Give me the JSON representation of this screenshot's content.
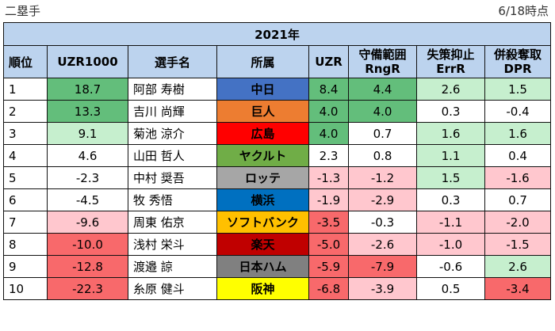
{
  "header": {
    "left": "二塁手",
    "right": "6/18時点"
  },
  "table": {
    "title": "2021年",
    "columns": [
      {
        "line1": "順位",
        "line2": ""
      },
      {
        "line1": "UZR1000",
        "line2": ""
      },
      {
        "line1": "選手名",
        "line2": ""
      },
      {
        "line1": "所属",
        "line2": ""
      },
      {
        "line1": "UZR",
        "line2": ""
      },
      {
        "line1": "守備範囲",
        "line2": "RngR"
      },
      {
        "line1": "失策抑止",
        "line2": "ErrR"
      },
      {
        "line1": "併殺奪取",
        "line2": "DPR"
      }
    ],
    "rows": [
      {
        "rank": "1",
        "uzr1000": "18.7",
        "player": "阿部 寿樹",
        "team": "中日",
        "uzr": "8.4",
        "rngr": "4.4",
        "errr": "2.6",
        "dpr": "1.5",
        "colors": {
          "uzr1000": "#63be7b",
          "team": "#4472c4",
          "uzr": "#63be7b",
          "rngr": "#63be7b",
          "errr": "#c6efce",
          "dpr": "#c6efce"
        },
        "team_text": "#000000"
      },
      {
        "rank": "2",
        "uzr1000": "13.3",
        "player": "吉川 尚輝",
        "team": "巨人",
        "uzr": "4.0",
        "rngr": "4.0",
        "errr": "0.3",
        "dpr": "-0.4",
        "colors": {
          "uzr1000": "#63be7b",
          "team": "#ed7d31",
          "uzr": "#63be7b",
          "rngr": "#63be7b",
          "errr": "#ffffff",
          "dpr": "#ffffff"
        },
        "team_text": "#000000"
      },
      {
        "rank": "3",
        "uzr1000": "9.1",
        "player": "菊池 涼介",
        "team": "広島",
        "uzr": "4.0",
        "rngr": "0.7",
        "errr": "1.6",
        "dpr": "1.6",
        "colors": {
          "uzr1000": "#c6efce",
          "team": "#ff0000",
          "uzr": "#63be7b",
          "rngr": "#ffffff",
          "errr": "#c6efce",
          "dpr": "#c6efce"
        },
        "team_text": "#000000"
      },
      {
        "rank": "4",
        "uzr1000": "4.6",
        "player": "山田 哲人",
        "team": "ヤクルト",
        "uzr": "2.3",
        "rngr": "0.8",
        "errr": "1.1",
        "dpr": "0.4",
        "colors": {
          "uzr1000": "#ffffff",
          "team": "#70ad47",
          "uzr": "#ffffff",
          "rngr": "#ffffff",
          "errr": "#c6efce",
          "dpr": "#ffffff"
        },
        "team_text": "#000000"
      },
      {
        "rank": "5",
        "uzr1000": "-2.3",
        "player": "中村 奨吾",
        "team": "ロッテ",
        "uzr": "-1.3",
        "rngr": "-1.2",
        "errr": "1.5",
        "dpr": "-1.6",
        "colors": {
          "uzr1000": "#ffffff",
          "team": "#a6a6a6",
          "uzr": "#ffc7ce",
          "rngr": "#ffc7ce",
          "errr": "#c6efce",
          "dpr": "#ffc7ce"
        },
        "team_text": "#000000"
      },
      {
        "rank": "6",
        "uzr1000": "-4.5",
        "player": "牧 秀悟",
        "team": "横浜",
        "uzr": "-1.9",
        "rngr": "-2.9",
        "errr": "0.3",
        "dpr": "0.7",
        "colors": {
          "uzr1000": "#ffffff",
          "team": "#0070c0",
          "uzr": "#ffc7ce",
          "rngr": "#ffc7ce",
          "errr": "#ffffff",
          "dpr": "#ffffff"
        },
        "team_text": "#000000"
      },
      {
        "rank": "7",
        "uzr1000": "-9.6",
        "player": "周東 佑京",
        "team": "ソフトバンク",
        "uzr": "-3.5",
        "rngr": "-0.3",
        "errr": "-1.1",
        "dpr": "-2.0",
        "colors": {
          "uzr1000": "#ffc7ce",
          "team": "#ffc000",
          "uzr": "#f8696b",
          "rngr": "#ffffff",
          "errr": "#ffc7ce",
          "dpr": "#ffc7ce"
        },
        "team_text": "#000000"
      },
      {
        "rank": "8",
        "uzr1000": "-10.0",
        "player": "浅村 栄斗",
        "team": "楽天",
        "uzr": "-5.0",
        "rngr": "-2.6",
        "errr": "-1.0",
        "dpr": "-1.5",
        "colors": {
          "uzr1000": "#f8696b",
          "team": "#c00000",
          "uzr": "#f8696b",
          "rngr": "#ffc7ce",
          "errr": "#ffc7ce",
          "dpr": "#ffc7ce"
        },
        "team_text": "#000000"
      },
      {
        "rank": "9",
        "uzr1000": "-12.8",
        "player": "渡邉 諒",
        "team": "日本ハム",
        "uzr": "-5.9",
        "rngr": "-7.9",
        "errr": "-0.6",
        "dpr": "2.6",
        "colors": {
          "uzr1000": "#f8696b",
          "team": "#808080",
          "uzr": "#f8696b",
          "rngr": "#f8696b",
          "errr": "#ffffff",
          "dpr": "#c6efce"
        },
        "team_text": "#000000"
      },
      {
        "rank": "10",
        "uzr1000": "-22.3",
        "player": "糸原 健斗",
        "team": "阪神",
        "uzr": "-6.8",
        "rngr": "-3.9",
        "errr": "0.5",
        "dpr": "-3.4",
        "colors": {
          "uzr1000": "#f8696b",
          "team": "#ffff00",
          "uzr": "#f8696b",
          "rngr": "#ffc7ce",
          "errr": "#ffffff",
          "dpr": "#f8696b"
        },
        "team_text": "#000000"
      }
    ]
  }
}
